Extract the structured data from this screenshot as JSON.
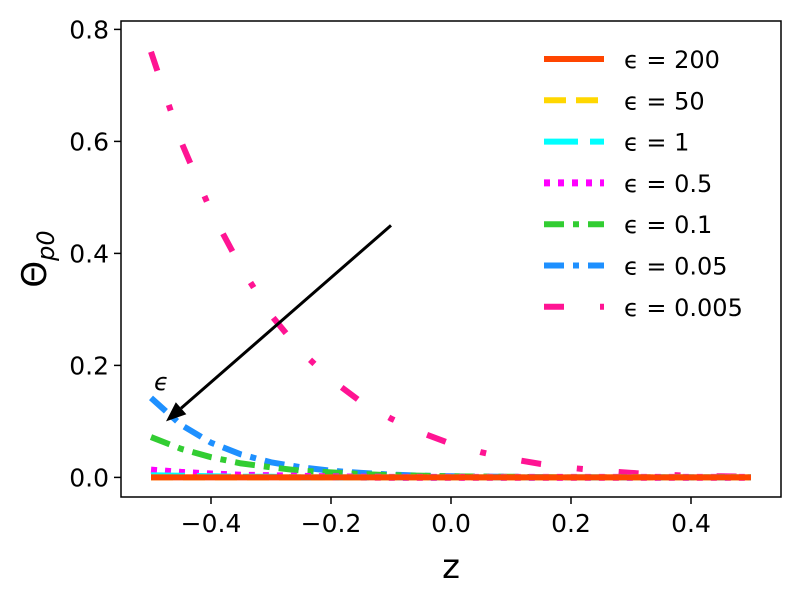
{
  "chart_data": {
    "type": "line",
    "xlabel": "z",
    "ylabel": "Θ",
    "ylabel_sub": "p0",
    "xlim": [
      -0.55,
      0.55
    ],
    "ylim": [
      -0.035,
      0.815
    ],
    "x_ticks": [
      -0.4,
      -0.2,
      0.0,
      0.2,
      0.4
    ],
    "x_tick_labels": [
      "−0.4",
      "−0.2",
      "0.0",
      "0.2",
      "0.4"
    ],
    "y_ticks": [
      0.0,
      0.2,
      0.4,
      0.6,
      0.8
    ],
    "y_tick_labels": [
      "0.0",
      "0.2",
      "0.4",
      "0.6",
      "0.8"
    ],
    "grid": false,
    "legend_position": "top-right",
    "annotation": {
      "text": "ϵ",
      "arrow_from": [
        -0.1,
        0.45
      ],
      "arrow_to": [
        -0.475,
        0.1
      ],
      "text_at": [
        -0.475,
        0.17
      ]
    },
    "series": [
      {
        "name": "ϵ = 200",
        "color": "#ff4500",
        "dash": "solid",
        "x": [
          -0.5,
          -0.4,
          -0.3,
          -0.2,
          -0.1,
          0.0,
          0.1,
          0.2,
          0.3,
          0.4,
          0.5
        ],
        "values": [
          0.0,
          0.0,
          0.0,
          0.0,
          0.0,
          0.0,
          0.0,
          0.0,
          0.0,
          0.0,
          0.0
        ]
      },
      {
        "name": "ϵ = 50",
        "color": "#ffd700",
        "dash": "dashed",
        "x": [
          -0.5,
          -0.4,
          -0.3,
          -0.2,
          -0.1,
          0.0,
          0.1,
          0.2,
          0.3,
          0.4,
          0.5
        ],
        "values": [
          0.0,
          0.0,
          0.0,
          0.0,
          0.0,
          0.0,
          0.0,
          0.0,
          0.0,
          0.0,
          0.0
        ]
      },
      {
        "name": "ϵ = 1",
        "color": "#00ffff",
        "dash": "longdash",
        "x": [
          -0.5,
          -0.45,
          -0.4,
          -0.35,
          -0.3,
          -0.25,
          -0.2,
          -0.1,
          0.0,
          0.1,
          0.2,
          0.3,
          0.4,
          0.5
        ],
        "values": [
          0.004,
          0.003,
          0.002,
          0.001,
          0.001,
          0.0,
          0.0,
          0.0,
          0.0,
          0.0,
          0.0,
          0.0,
          0.0,
          0.0
        ]
      },
      {
        "name": "ϵ = 0.5",
        "color": "#ff00ff",
        "dash": "dotted",
        "x": [
          -0.5,
          -0.45,
          -0.4,
          -0.35,
          -0.3,
          -0.25,
          -0.2,
          -0.1,
          0.0,
          0.1,
          0.2,
          0.3,
          0.4,
          0.5
        ],
        "values": [
          0.013,
          0.009,
          0.006,
          0.004,
          0.003,
          0.002,
          0.001,
          0.0,
          0.0,
          0.0,
          0.0,
          0.0,
          0.0,
          0.0
        ]
      },
      {
        "name": "ϵ = 0.1",
        "color": "#32cd32",
        "dash": "dashdot",
        "x": [
          -0.5,
          -0.45,
          -0.4,
          -0.35,
          -0.3,
          -0.25,
          -0.2,
          -0.15,
          -0.1,
          0.0,
          0.1,
          0.2,
          0.3,
          0.4,
          0.5
        ],
        "values": [
          0.072,
          0.051,
          0.036,
          0.025,
          0.018,
          0.012,
          0.009,
          0.006,
          0.004,
          0.002,
          0.001,
          0.0,
          0.0,
          0.0,
          0.0
        ]
      },
      {
        "name": "ϵ = 0.05",
        "color": "#1e90ff",
        "dash": "dashdot",
        "x": [
          -0.5,
          -0.45,
          -0.4,
          -0.35,
          -0.3,
          -0.25,
          -0.2,
          -0.15,
          -0.1,
          -0.05,
          0.0,
          0.1,
          0.2,
          0.3,
          0.4,
          0.5
        ],
        "values": [
          0.142,
          0.094,
          0.062,
          0.041,
          0.027,
          0.018,
          0.012,
          0.008,
          0.005,
          0.003,
          0.002,
          0.001,
          0.0,
          0.0,
          0.0,
          0.0
        ]
      },
      {
        "name": "ϵ = 0.005",
        "color": "#ff1493",
        "dash": "dashdotloose",
        "x": [
          -0.5,
          -0.45,
          -0.4,
          -0.35,
          -0.3,
          -0.25,
          -0.2,
          -0.15,
          -0.1,
          -0.05,
          0.0,
          0.05,
          0.1,
          0.15,
          0.2,
          0.25,
          0.3,
          0.35,
          0.4,
          0.45,
          0.5
        ],
        "values": [
          0.76,
          0.6,
          0.475,
          0.375,
          0.29,
          0.225,
          0.175,
          0.135,
          0.105,
          0.08,
          0.06,
          0.045,
          0.033,
          0.024,
          0.017,
          0.012,
          0.008,
          0.005,
          0.003,
          0.002,
          0.001
        ]
      }
    ]
  }
}
